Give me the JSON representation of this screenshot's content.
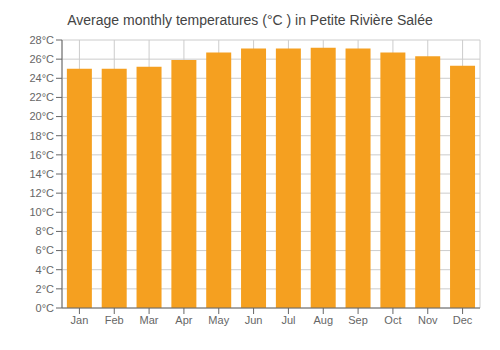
{
  "chart_data": {
    "type": "bar",
    "title": "Average monthly temperatures (°C ) in Petite Rivière Salée",
    "categories": [
      "Jan",
      "Feb",
      "Mar",
      "Apr",
      "May",
      "Jun",
      "Jul",
      "Aug",
      "Sep",
      "Oct",
      "Nov",
      "Dec"
    ],
    "values": [
      25.0,
      25.0,
      25.2,
      25.9,
      26.7,
      27.1,
      27.1,
      27.2,
      27.1,
      26.7,
      26.3,
      25.3
    ],
    "color": "#F5A020",
    "ylim": [
      0,
      28
    ],
    "yticks": [
      {
        "value": 0,
        "label": "0°C"
      },
      {
        "value": 2,
        "label": "2°C"
      },
      {
        "value": 4,
        "label": "4°C"
      },
      {
        "value": 6,
        "label": "6°C"
      },
      {
        "value": 8,
        "label": "8°C"
      },
      {
        "value": 10,
        "label": "10°C"
      },
      {
        "value": 12,
        "label": "12°C"
      },
      {
        "value": 14,
        "label": "14°C"
      },
      {
        "value": 16,
        "label": "16°C"
      },
      {
        "value": 18,
        "label": "18°C"
      },
      {
        "value": 20,
        "label": "20°C"
      },
      {
        "value": 22,
        "label": "22°C"
      },
      {
        "value": 24,
        "label": "24°C"
      },
      {
        "value": 26,
        "label": "26°C"
      },
      {
        "value": 28,
        "label": "28°C"
      }
    ],
    "grid": true
  }
}
